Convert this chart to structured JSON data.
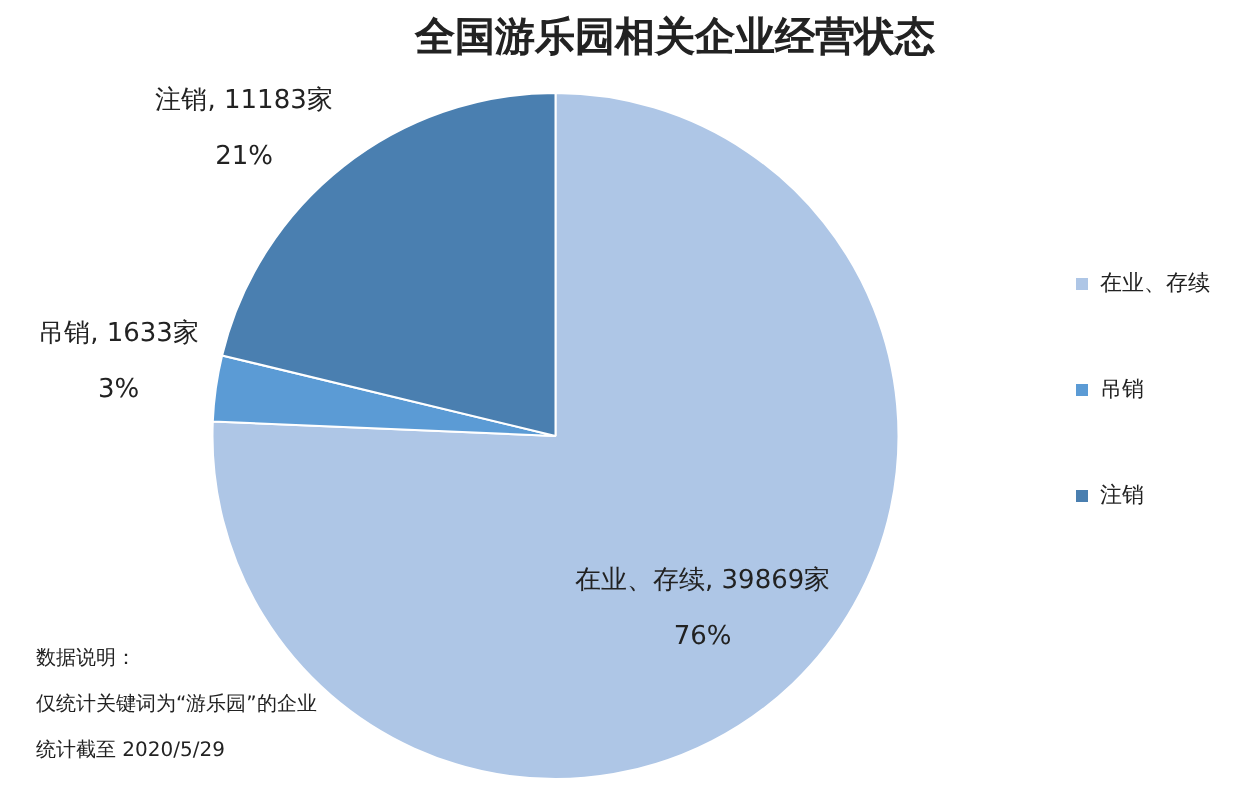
{
  "chart_data": {
    "type": "pie",
    "title": "全国游乐园相关企业经营状态",
    "categories": [
      "在业、存续",
      "吊销",
      "注销"
    ],
    "values": [
      39869,
      1633,
      11183
    ],
    "colors": [
      "#aec6e6",
      "#5b9bd5",
      "#4a7fb0"
    ],
    "value_labels": [
      ", 39869家\n76%",
      ", 1633家\n3%",
      ", 11183家\n21%"
    ],
    "legend": "right",
    "annotations": [
      "数据说明：",
      "仅统计关键词为“游乐园”的企业",
      "统计截至 2020/5/29"
    ]
  }
}
